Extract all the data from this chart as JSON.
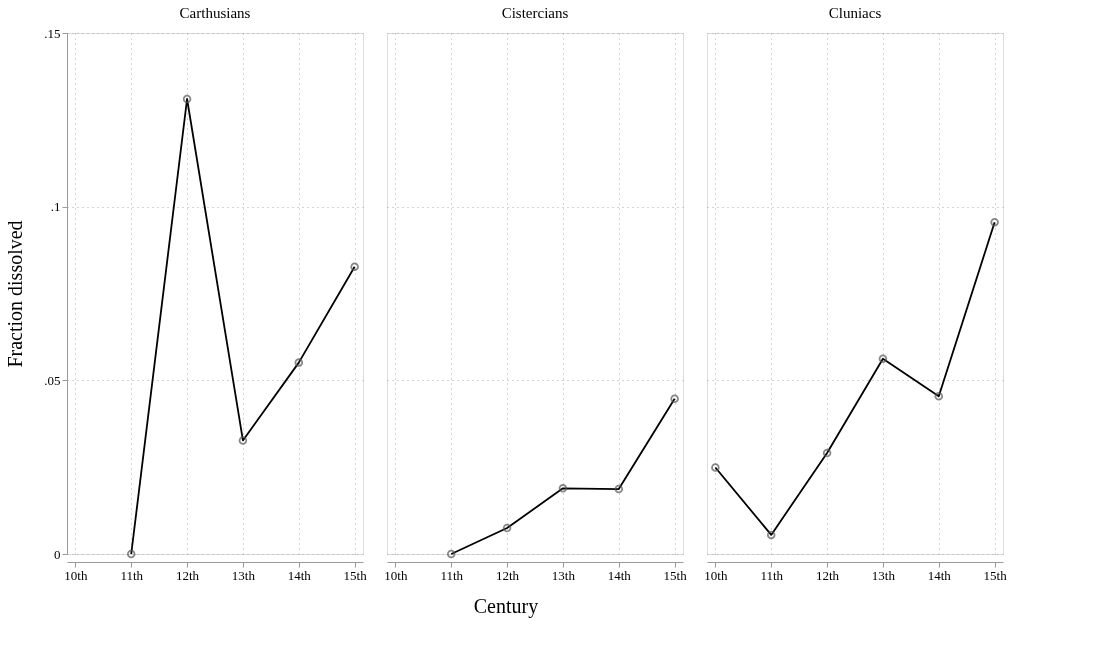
{
  "chart_data": [
    {
      "type": "line",
      "title": "Carthusians",
      "xlabel": "Century",
      "ylabel": "Fraction dissolved",
      "categories": [
        "10th",
        "11th",
        "12th",
        "13th",
        "14th",
        "15th"
      ],
      "series": [
        {
          "color": "#000000",
          "values": [
            null,
            0,
            0.131,
            0.0327,
            0.0551,
            0.0827
          ]
        }
      ],
      "ylim": [
        0,
        0.15
      ],
      "yticks": [
        0,
        {
          "value": 0.05,
          "label": ".05"
        },
        {
          "value": 0.1,
          "label": ".1"
        },
        {
          "value": 0.15,
          "label": ".15"
        }
      ],
      "grid": true,
      "marker": "circle",
      "line_style": "solid"
    },
    {
      "type": "line",
      "title": "Cistercians",
      "categories": [
        "10th",
        "11th",
        "12th",
        "13th",
        "14th",
        "15th"
      ],
      "series": [
        {
          "color": "#000000",
          "values": [
            null,
            0,
            0.0075,
            0.0189,
            0.0187,
            0.0447
          ]
        }
      ],
      "ylim": [
        0,
        0.15
      ],
      "yticks": [
        0,
        0.05,
        0.1,
        0.15
      ],
      "grid": true,
      "marker": "circle",
      "line_style": "solid",
      "tick_labels": "x"
    },
    {
      "type": "line",
      "title": "Cluniacs",
      "categories": [
        "10th",
        "11th",
        "12th",
        "13th",
        "14th",
        "15th"
      ],
      "series": [
        {
          "color": "#000000",
          "values": [
            0.0249,
            0.0055,
            0.0291,
            0.0562,
            0.0454,
            0.0955
          ]
        }
      ],
      "ylim": [
        0,
        0.15
      ],
      "yticks": [
        0,
        0.05,
        0.1,
        0.15
      ],
      "grid": true,
      "marker": "circle",
      "line_style": "solid",
      "tick_labels": "x"
    }
  ]
}
